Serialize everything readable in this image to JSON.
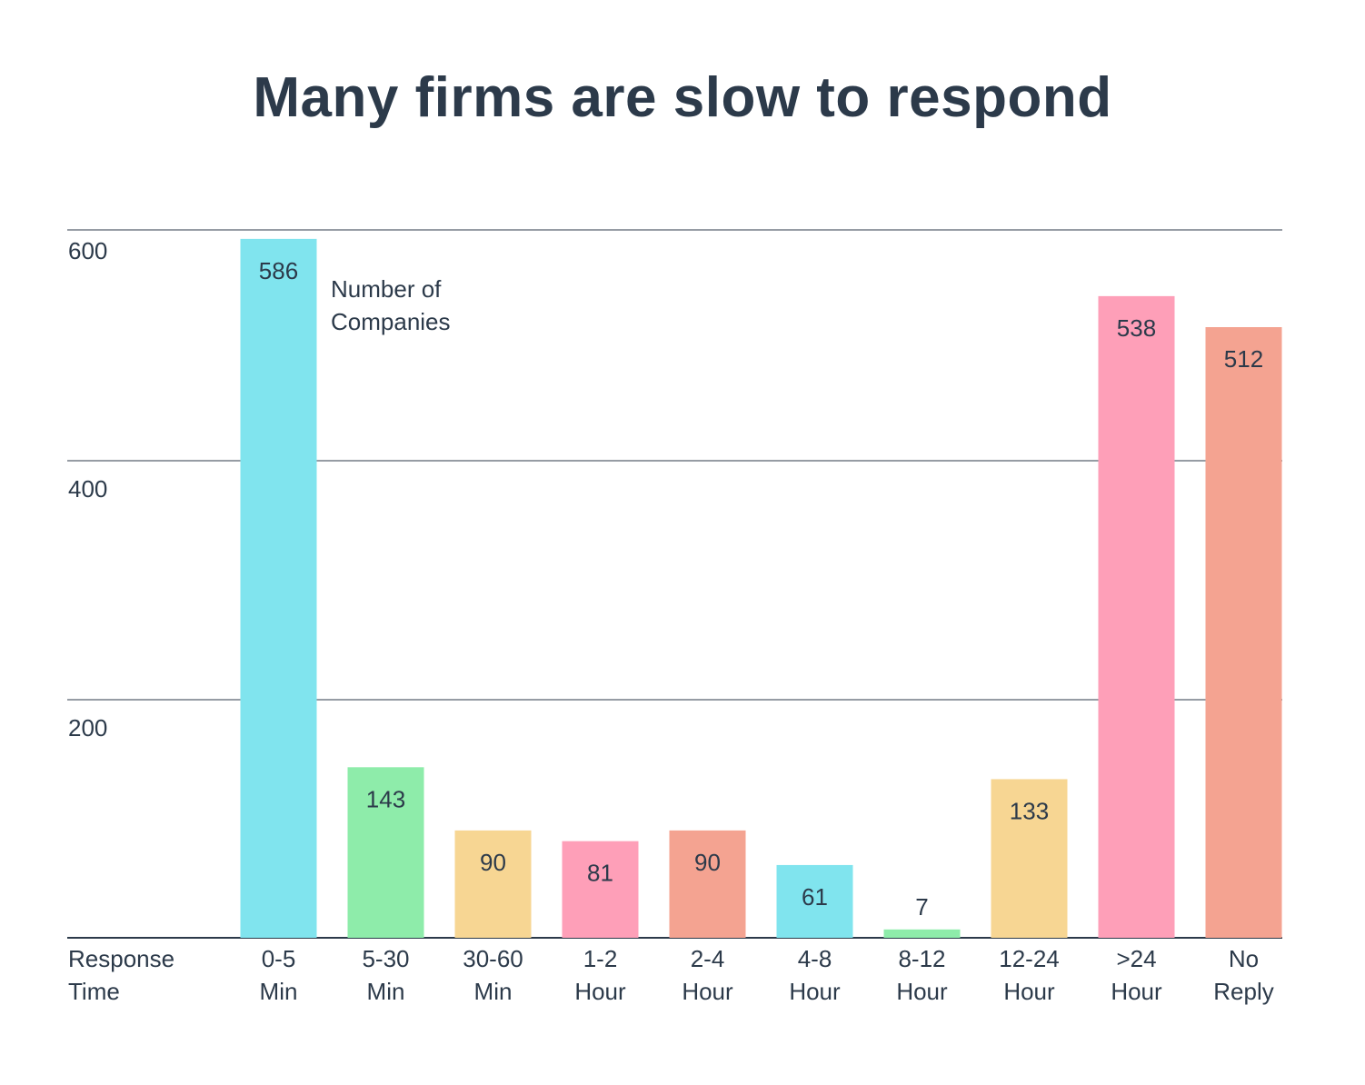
{
  "chart_data": {
    "type": "bar",
    "title": "Many firms are slow to respond",
    "xlabel": "Response Time",
    "ylabel": "Number of Companies",
    "categories": [
      "0-5 Min",
      "5-30 Min",
      "30-60 Min",
      "1-2 Hour",
      "2-4 Hour",
      "4-8 Hour",
      "8-12 Hour",
      "12-24 Hour",
      ">24 Hour",
      "No Reply"
    ],
    "values": [
      586,
      143,
      90,
      81,
      90,
      61,
      7,
      133,
      538,
      512
    ],
    "yticks": [
      200,
      400,
      600
    ],
    "grid": true,
    "colors": [
      "#80e4ee",
      "#8eecaa",
      "#f7d693",
      "#fe9fb8",
      "#f4a391",
      "#80e4ee",
      "#8eecaa",
      "#f7d693",
      "#fe9fb8",
      "#f4a391"
    ]
  }
}
